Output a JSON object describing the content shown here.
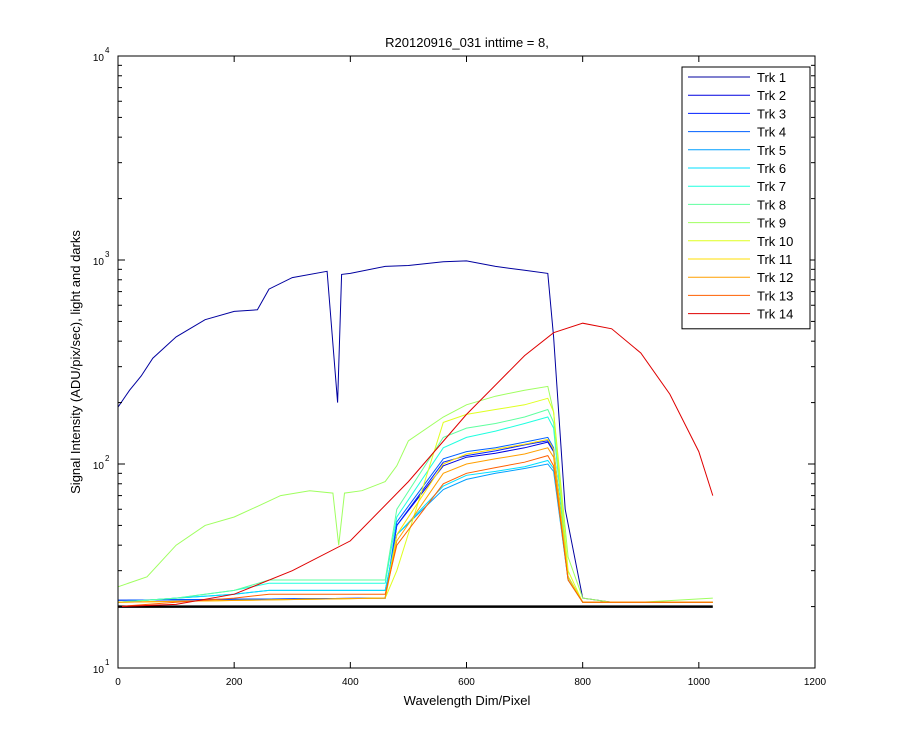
{
  "chart_data": {
    "type": "line",
    "title": "R20120916_031 inttime = 8,",
    "xlabel": "Wavelength Dim/Pixel",
    "ylabel": "Signal Intensity (ADU/pix/sec), light and darks",
    "xlim": [
      0,
      1200
    ],
    "ylim": [
      10,
      10000
    ],
    "yscale": "log",
    "x_ticks": [
      0,
      200,
      400,
      600,
      800,
      1000,
      1200
    ],
    "y_ticks": [
      {
        "value": 10,
        "base": "10",
        "exp": "1"
      },
      {
        "value": 100,
        "base": "10",
        "exp": "2"
      },
      {
        "value": 1000,
        "base": "10",
        "exp": "3"
      },
      {
        "value": 10000,
        "base": "10",
        "exp": "4"
      }
    ],
    "grid": false,
    "legend_position": "top-right",
    "series": [
      {
        "name": "Trk 1",
        "color": "#00009F",
        "x": [
          0,
          20,
          40,
          60,
          100,
          150,
          200,
          240,
          260,
          300,
          360,
          378,
          385,
          400,
          460,
          500,
          560,
          600,
          650,
          700,
          740,
          750,
          770,
          800,
          850,
          900,
          1024
        ],
        "y": [
          190,
          230,
          270,
          330,
          420,
          510,
          560,
          570,
          720,
          820,
          880,
          200,
          850,
          860,
          930,
          940,
          980,
          990,
          930,
          890,
          860,
          420,
          60,
          22,
          21,
          21,
          21
        ]
      },
      {
        "name": "Trk 2",
        "color": "#0000DF",
        "x": [
          0,
          460,
          480,
          560,
          600,
          650,
          700,
          740,
          750,
          775,
          800,
          850,
          900,
          1024
        ],
        "y": [
          21.5,
          22,
          50,
          98,
          108,
          113,
          120,
          128,
          115,
          28,
          21,
          21,
          21,
          21
        ]
      },
      {
        "name": "Trk 3",
        "color": "#001FFF",
        "x": [
          0,
          460,
          480,
          560,
          600,
          650,
          700,
          740,
          750,
          775,
          800,
          850,
          900,
          1024
        ],
        "y": [
          21.5,
          22,
          50,
          102,
          110,
          116,
          124,
          130,
          118,
          28,
          21,
          21,
          21,
          21
        ]
      },
      {
        "name": "Trk 4",
        "color": "#005FFF",
        "x": [
          0,
          460,
          480,
          560,
          600,
          650,
          700,
          740,
          750,
          775,
          800,
          850,
          900,
          1024
        ],
        "y": [
          21.5,
          22,
          52,
          106,
          115,
          120,
          128,
          135,
          120,
          28,
          21,
          21,
          21,
          21
        ]
      },
      {
        "name": "Trk 5",
        "color": "#009FFF",
        "x": [
          0,
          100,
          200,
          260,
          370,
          400,
          460,
          480,
          560,
          600,
          650,
          700,
          740,
          750,
          775,
          800,
          850,
          900,
          1024
        ],
        "y": [
          21,
          22,
          23,
          24,
          24,
          24,
          24,
          45,
          75,
          84,
          90,
          95,
          100,
          92,
          27,
          21,
          21,
          21,
          21
        ]
      },
      {
        "name": "Trk 6",
        "color": "#00DFFF",
        "x": [
          0,
          100,
          200,
          260,
          370,
          400,
          460,
          480,
          560,
          600,
          650,
          700,
          740,
          750,
          775,
          800,
          850,
          900,
          1024
        ],
        "y": [
          21,
          22,
          23,
          24,
          24,
          24,
          24,
          45,
          78,
          88,
          92,
          97,
          104,
          95,
          27,
          21,
          21,
          21,
          21
        ]
      },
      {
        "name": "Trk 7",
        "color": "#1FFFDF",
        "x": [
          0,
          100,
          200,
          260,
          370,
          400,
          460,
          480,
          560,
          600,
          650,
          700,
          740,
          750,
          775,
          800,
          850,
          900,
          1024
        ],
        "y": [
          21,
          22,
          24,
          26,
          26,
          26,
          26,
          55,
          120,
          135,
          145,
          158,
          170,
          150,
          28,
          21,
          21,
          21,
          21
        ]
      },
      {
        "name": "Trk 8",
        "color": "#5FFF9F",
        "x": [
          0,
          100,
          200,
          260,
          370,
          400,
          460,
          480,
          560,
          600,
          650,
          700,
          740,
          750,
          775,
          800,
          850,
          900,
          1024
        ],
        "y": [
          21,
          22,
          24,
          27,
          27,
          27,
          27,
          60,
          135,
          150,
          158,
          170,
          185,
          160,
          28,
          21,
          21,
          21,
          21
        ]
      },
      {
        "name": "Trk 9",
        "color": "#9FFF5F",
        "x": [
          0,
          50,
          100,
          150,
          200,
          240,
          280,
          330,
          370,
          380,
          390,
          420,
          460,
          480,
          500,
          560,
          600,
          650,
          700,
          740,
          750,
          775,
          800,
          850,
          900,
          1024
        ],
        "y": [
          25,
          28,
          40,
          50,
          55,
          62,
          70,
          74,
          72,
          40,
          72,
          74,
          82,
          98,
          130,
          170,
          195,
          215,
          230,
          240,
          180,
          35,
          22,
          21,
          21,
          22
        ]
      },
      {
        "name": "Trk 10",
        "color": "#DFFF1F",
        "x": [
          0,
          460,
          480,
          560,
          600,
          650,
          700,
          740,
          750,
          775,
          800,
          850,
          900,
          1024
        ],
        "y": [
          21,
          22,
          30,
          160,
          175,
          185,
          195,
          210,
          180,
          30,
          21,
          21,
          21,
          21
        ]
      },
      {
        "name": "Trk 11",
        "color": "#FFDF00",
        "x": [
          0,
          460,
          480,
          560,
          600,
          650,
          700,
          740,
          750,
          775,
          800,
          850,
          900,
          1024
        ],
        "y": [
          21,
          22,
          45,
          100,
          112,
          118,
          125,
          132,
          118,
          28,
          21,
          21,
          21,
          21
        ]
      },
      {
        "name": "Trk 12",
        "color": "#FF9F00",
        "x": [
          0,
          460,
          480,
          560,
          600,
          650,
          700,
          740,
          750,
          775,
          800,
          850,
          900,
          1024
        ],
        "y": [
          21,
          22,
          42,
          90,
          100,
          106,
          112,
          120,
          108,
          27,
          21,
          21,
          21,
          21
        ]
      },
      {
        "name": "Trk 13",
        "color": "#FF5F00",
        "x": [
          0,
          100,
          200,
          260,
          370,
          400,
          460,
          480,
          560,
          600,
          650,
          700,
          740,
          750,
          775,
          800,
          850,
          900,
          1024
        ],
        "y": [
          20,
          21,
          22,
          23,
          23,
          23,
          23,
          40,
          80,
          90,
          96,
          102,
          110,
          98,
          27,
          21,
          21,
          21,
          21
        ]
      },
      {
        "name": "Trk 14",
        "color": "#DF0000",
        "x": [
          0,
          100,
          200,
          300,
          400,
          500,
          600,
          700,
          750,
          800,
          850,
          900,
          950,
          1000,
          1024
        ],
        "y": [
          20,
          20.5,
          23,
          30,
          42,
          82,
          175,
          340,
          440,
          490,
          460,
          350,
          220,
          115,
          70
        ]
      }
    ],
    "darks": {
      "color": "#000000",
      "x": [
        0,
        1024
      ],
      "y": [
        20,
        20
      ]
    }
  }
}
